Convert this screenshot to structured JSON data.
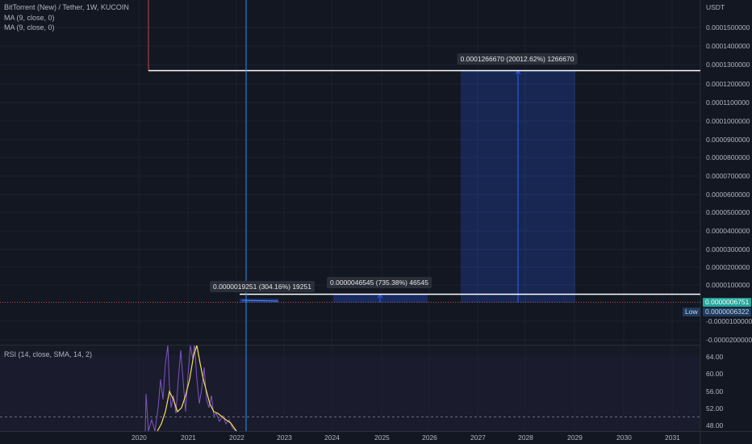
{
  "header": {
    "symbol_title": "BitTorrent (New) / Tether, 1W, KUCOIN",
    "indicators": [
      "MA (9, close, 0)",
      "MA (9, close, 0)"
    ]
  },
  "price_axis": {
    "currency": "USDT",
    "ticks": [
      "0.0001500000",
      "0.0001400000",
      "0.0001300000",
      "0.0001200000",
      "0.0001100000",
      "0.0001000000",
      "0.0000900000",
      "0.0000800000",
      "0.0000700000",
      "0.0000600000",
      "0.0000500000",
      "0.0000400000",
      "0.0000300000",
      "0.0000200000",
      "0.0000100000",
      "-0.0000100000",
      "-0.0000200000"
    ],
    "last_price": "0.0000006751",
    "low_label": "Low",
    "low_price": "0.0000006322"
  },
  "time_axis": {
    "years": [
      "2020",
      "2021",
      "2022",
      "2023",
      "2024",
      "2025",
      "2026",
      "2027",
      "2028",
      "2029",
      "2030",
      "2031"
    ]
  },
  "measurements": [
    {
      "label": "0.0000019251 (304.16%) 19251"
    },
    {
      "label": "0.0000046545 (735.38%) 46545"
    },
    {
      "label": "0.0001266670 (20012.62%) 1266670"
    }
  ],
  "rsi": {
    "title": "RSI (14, close, SMA, 14, 2)",
    "ticks": [
      "64.00",
      "60.00",
      "56.00",
      "52.00",
      "48.00"
    ]
  },
  "colors": {
    "background": "#131722",
    "grid": "#1e2230",
    "accent_blue": "#2962ff",
    "last_price_green": "#26a69a",
    "rsi_line": "#7e57c2",
    "rsi_ma": "#f5e050"
  }
}
